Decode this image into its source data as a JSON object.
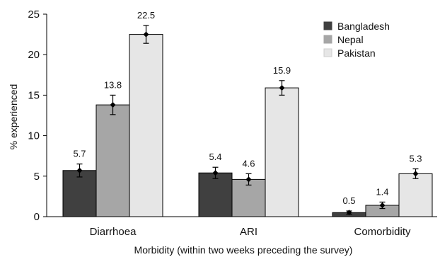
{
  "chart_data": {
    "type": "bar",
    "title": "",
    "xlabel": "Morbidity (within two weeks preceding the survey)",
    "ylabel": "% experienced",
    "ylim": [
      0,
      25
    ],
    "yticks": [
      0,
      5,
      10,
      15,
      20,
      25
    ],
    "categories": [
      "Diarrhoea",
      "ARI",
      "Comorbidity"
    ],
    "series": [
      {
        "name": "Bangladesh",
        "color": "#404040",
        "values": [
          5.7,
          5.4,
          0.5
        ],
        "labels": [
          "5.7",
          "5.4",
          "0.5"
        ],
        "error": [
          0.8,
          0.7,
          0.2
        ]
      },
      {
        "name": "Nepal",
        "color": "#a6a6a6",
        "values": [
          13.8,
          4.6,
          1.4
        ],
        "labels": [
          "13.8",
          "4.6",
          "1.4"
        ],
        "error": [
          1.2,
          0.7,
          0.4
        ]
      },
      {
        "name": "Pakistan",
        "color": "#e6e6e6",
        "values": [
          22.5,
          15.9,
          5.3
        ],
        "labels": [
          "22.5",
          "15.9",
          "5.3"
        ],
        "error": [
          1.1,
          0.9,
          0.6
        ]
      }
    ],
    "grid": false,
    "legend_position": "top-right",
    "error_bars": true
  }
}
